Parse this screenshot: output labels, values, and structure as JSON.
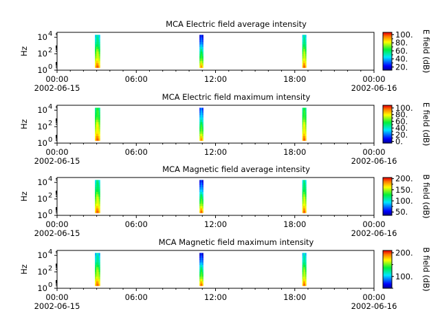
{
  "chart_data": [
    {
      "type": "heatmap",
      "title": "MCA  Electric field average intensity",
      "ylabel": "Hz",
      "colorbar_label": "E field (dB)",
      "colorbar_range": [
        12,
        106
      ],
      "colorbar_ticks": [
        "20.",
        "40.",
        "60.",
        "80.",
        "100."
      ],
      "colorbar_tick_values": [
        20,
        40,
        60,
        80,
        100
      ],
      "y_ticks": [
        "10^0",
        "10^2",
        "10^4"
      ],
      "y_tick_values": [
        0,
        2,
        4
      ],
      "x_ticks": [
        "00:00",
        "06:00",
        "12:00",
        "18:00",
        "00:00"
      ],
      "x_date_labels": [
        "2002-06-15",
        "2002-06-16"
      ],
      "bursts": [
        {
          "start": "02:52",
          "end": "03:15",
          "freq_min": 0.3,
          "freq_max": 4.3,
          "dB_low_freq": 95,
          "dB_high_freq": 50
        },
        {
          "start": "10:47",
          "end": "11:04",
          "freq_min": 0.3,
          "freq_max": 4.3,
          "dB_low_freq": 90,
          "dB_high_freq": 25
        },
        {
          "start": "18:34",
          "end": "18:52",
          "freq_min": 0.3,
          "freq_max": 4.3,
          "dB_low_freq": 95,
          "dB_high_freq": 50
        }
      ]
    },
    {
      "type": "heatmap",
      "title": "MCA  Electric field maximum intensity",
      "ylabel": "Hz",
      "colorbar_label": "E field (dB)",
      "colorbar_range": [
        -5,
        108
      ],
      "colorbar_ticks": [
        "0.",
        "20.",
        "40.",
        "60.",
        "80.",
        "100."
      ],
      "colorbar_tick_values": [
        0,
        20,
        40,
        60,
        80,
        100
      ],
      "y_ticks": [
        "10^0",
        "10^2",
        "10^4"
      ],
      "y_tick_values": [
        0,
        2,
        4
      ],
      "x_ticks": [
        "00:00",
        "06:00",
        "12:00",
        "18:00",
        "00:00"
      ],
      "x_date_labels": [
        "2002-06-15",
        "2002-06-16"
      ],
      "bursts": [
        {
          "start": "02:52",
          "end": "03:15",
          "freq_min": 0.3,
          "freq_max": 4.3,
          "dB_low_freq": 95,
          "dB_high_freq": 55
        },
        {
          "start": "10:47",
          "end": "11:04",
          "freq_min": 0.3,
          "freq_max": 4.3,
          "dB_low_freq": 90,
          "dB_high_freq": 20
        },
        {
          "start": "18:34",
          "end": "18:52",
          "freq_min": 0.3,
          "freq_max": 4.3,
          "dB_low_freq": 95,
          "dB_high_freq": 55
        }
      ]
    },
    {
      "type": "heatmap",
      "title": "MCA  Magnetic field average intensity",
      "ylabel": "Hz",
      "colorbar_label": "B field (dB)",
      "colorbar_range": [
        35,
        205
      ],
      "colorbar_ticks": [
        "50.",
        "100.",
        "150.",
        "200."
      ],
      "colorbar_tick_values": [
        50,
        100,
        150,
        200
      ],
      "y_ticks": [
        "10^0",
        "10^2",
        "10^4"
      ],
      "y_tick_values": [
        0,
        2,
        4
      ],
      "x_ticks": [
        "00:00",
        "06:00",
        "12:00",
        "18:00",
        "00:00"
      ],
      "x_date_labels": [
        "2002-06-15",
        "2002-06-16"
      ],
      "bursts": [
        {
          "start": "02:52",
          "end": "03:15",
          "freq_min": 0.3,
          "freq_max": 4.3,
          "dB_low_freq": 185,
          "dB_high_freq": 110
        },
        {
          "start": "10:47",
          "end": "11:04",
          "freq_min": 0.3,
          "freq_max": 4.3,
          "dB_low_freq": 185,
          "dB_high_freq": 60
        },
        {
          "start": "18:34",
          "end": "18:52",
          "freq_min": 0.3,
          "freq_max": 4.3,
          "dB_low_freq": 185,
          "dB_high_freq": 110
        }
      ]
    },
    {
      "type": "heatmap",
      "title": "MCA  Magnetic field maximum intensity",
      "ylabel": "Hz",
      "colorbar_label": "B field (dB)",
      "colorbar_range": [
        50,
        210
      ],
      "colorbar_ticks": [
        "100.",
        "200."
      ],
      "colorbar_tick_values": [
        100,
        200
      ],
      "y_ticks": [
        "10^0",
        "10^2",
        "10^4"
      ],
      "y_tick_values": [
        0,
        2,
        4
      ],
      "x_ticks": [
        "00:00",
        "06:00",
        "12:00",
        "18:00",
        "00:00"
      ],
      "x_date_labels": [
        "2002-06-15",
        "2002-06-16"
      ],
      "bursts": [
        {
          "start": "02:52",
          "end": "03:15",
          "freq_min": 0.3,
          "freq_max": 4.3,
          "dB_low_freq": 190,
          "dB_high_freq": 110
        },
        {
          "start": "10:47",
          "end": "11:04",
          "freq_min": 0.3,
          "freq_max": 4.3,
          "dB_low_freq": 190,
          "dB_high_freq": 70
        },
        {
          "start": "18:34",
          "end": "18:52",
          "freq_min": 0.3,
          "freq_max": 4.3,
          "dB_low_freq": 190,
          "dB_high_freq": 110
        }
      ]
    }
  ]
}
